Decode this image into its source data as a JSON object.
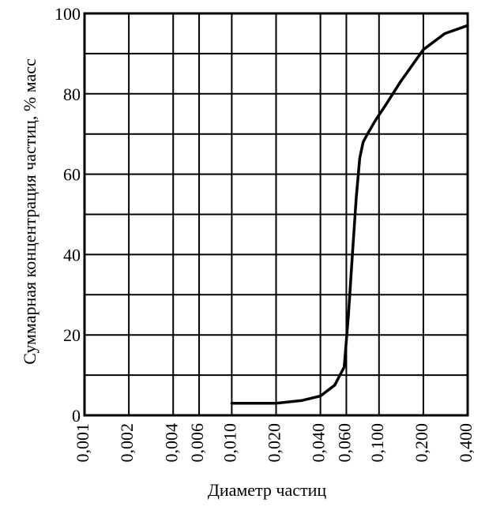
{
  "chart_data": {
    "type": "line",
    "xlabel": "Диаметр частиц",
    "ylabel": "Суммарная концентрация частиц, % масс",
    "x_scale": "log",
    "xlim": [
      0.001,
      0.4
    ],
    "ylim": [
      0,
      100
    ],
    "x_ticks": [
      {
        "value": 0.001,
        "label": "0,001"
      },
      {
        "value": 0.002,
        "label": "0,002"
      },
      {
        "value": 0.004,
        "label": "0,004"
      },
      {
        "value": 0.006,
        "label": "0,006"
      },
      {
        "value": 0.01,
        "label": "0,010"
      },
      {
        "value": 0.02,
        "label": "0,020"
      },
      {
        "value": 0.04,
        "label": "0,040"
      },
      {
        "value": 0.06,
        "label": "0,060"
      },
      {
        "value": 0.1,
        "label": "0,100"
      },
      {
        "value": 0.2,
        "label": "0,200"
      },
      {
        "value": 0.4,
        "label": "0,400"
      }
    ],
    "y_ticks": [
      {
        "value": 0,
        "label": "0"
      },
      {
        "value": 20,
        "label": "20"
      },
      {
        "value": 40,
        "label": "40"
      },
      {
        "value": 60,
        "label": "60"
      },
      {
        "value": 80,
        "label": "80"
      },
      {
        "value": 100,
        "label": "100"
      }
    ],
    "y_grid_step": 10,
    "grid": true,
    "series": [
      {
        "x": [
          0.01,
          0.015,
          0.02,
          0.03,
          0.04,
          0.05,
          0.058,
          0.062,
          0.066,
          0.07,
          0.074,
          0.078,
          0.085,
          0.095,
          0.11,
          0.14,
          0.2,
          0.28,
          0.4
        ],
        "y": [
          3,
          3,
          3,
          3.7,
          4.8,
          7.5,
          12,
          25,
          40,
          54,
          64,
          68,
          70.5,
          73.5,
          77,
          83,
          91,
          95,
          97
        ]
      }
    ]
  }
}
